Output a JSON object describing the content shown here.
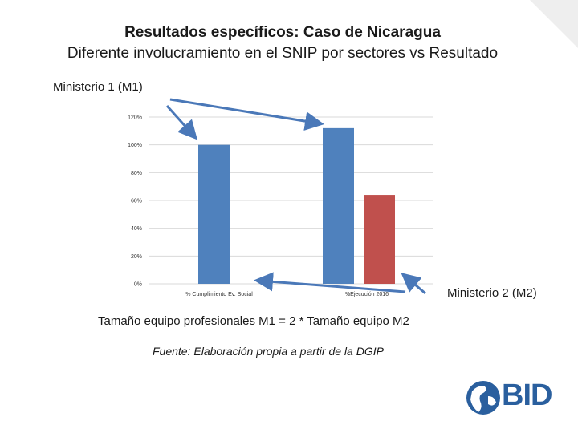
{
  "title_line1": "Resultados específicos: Caso de Nicaragua",
  "title_line2": "Diferente involucramiento en el SNIP por sectores vs Resultado",
  "label_m1": "Ministerio 1 (M1)",
  "label_m2": "Ministerio 2 (M2)",
  "note": "Tamaño equipo profesionales M1 = 2 * Tamaño equipo M2",
  "source": "Fuente: Elaboración propia a partir de la DGIP",
  "logo_text": "BID",
  "colors": {
    "blue": "#4f81bd",
    "red": "#c0504d",
    "arrow": "#4a78b8",
    "grid": "#d9d9d9"
  },
  "chart_data": {
    "type": "bar",
    "categories": [
      "% Cumplimiento Ev. Social",
      "%Ejecución 2016"
    ],
    "series": [
      {
        "values": [
          1.0,
          1.12
        ],
        "color": "#4f81bd"
      },
      {
        "values": [
          null,
          0.64
        ],
        "color": "#c0504d"
      }
    ],
    "ylim": [
      0,
      1.2
    ],
    "yticks": [
      0,
      0.2,
      0.4,
      0.6,
      0.8,
      1.0,
      1.2
    ],
    "ytick_labels": [
      "0%",
      "20%",
      "40%",
      "60%",
      "80%",
      "100%",
      "120%"
    ],
    "grid": true
  }
}
